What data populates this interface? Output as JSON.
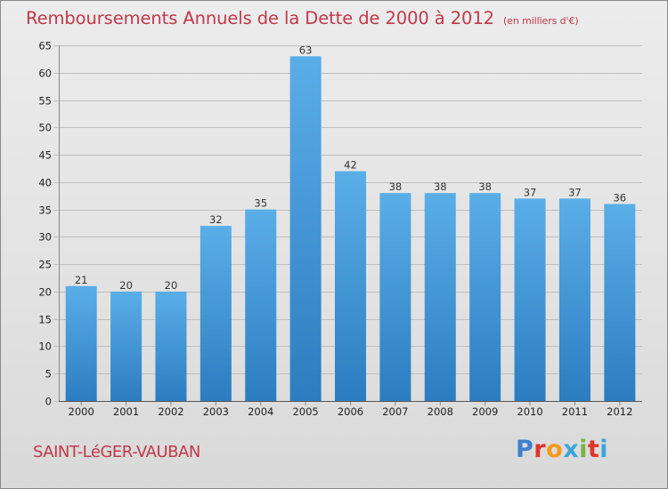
{
  "header": {
    "title": "Remboursements Annuels de la Dette de 2000 à 2012",
    "subtitle": "(en milliers d'€)"
  },
  "footer": {
    "commune": "SAINT-LéGER-VAUBAN",
    "logo_letters": [
      "P",
      "r",
      "o",
      "x",
      "i",
      "t",
      "i"
    ],
    "logo_colors": [
      "#3f7fd0",
      "#e0352b",
      "#f39a1b",
      "#3aa6d9",
      "#7cb342",
      "#e0352b",
      "#3aa6d9"
    ]
  },
  "colors": {
    "bar_light": "#5aaee8",
    "bar_dark": "#2c7dc0",
    "grid": "#bfbfbf",
    "axis_text": "#222222",
    "label_text": "#333333"
  },
  "chart_data": {
    "type": "bar",
    "categories": [
      "2000",
      "2001",
      "2002",
      "2003",
      "2004",
      "2005",
      "2006",
      "2007",
      "2008",
      "2009",
      "2010",
      "2011",
      "2012"
    ],
    "values": [
      21,
      20,
      20,
      32,
      35,
      63,
      42,
      38,
      38,
      38,
      37,
      37,
      36
    ],
    "ylim": [
      0,
      65
    ],
    "yticks": [
      0,
      5,
      10,
      15,
      20,
      25,
      30,
      35,
      40,
      45,
      50,
      55,
      60,
      65
    ],
    "grid": true,
    "data_labels": true
  }
}
